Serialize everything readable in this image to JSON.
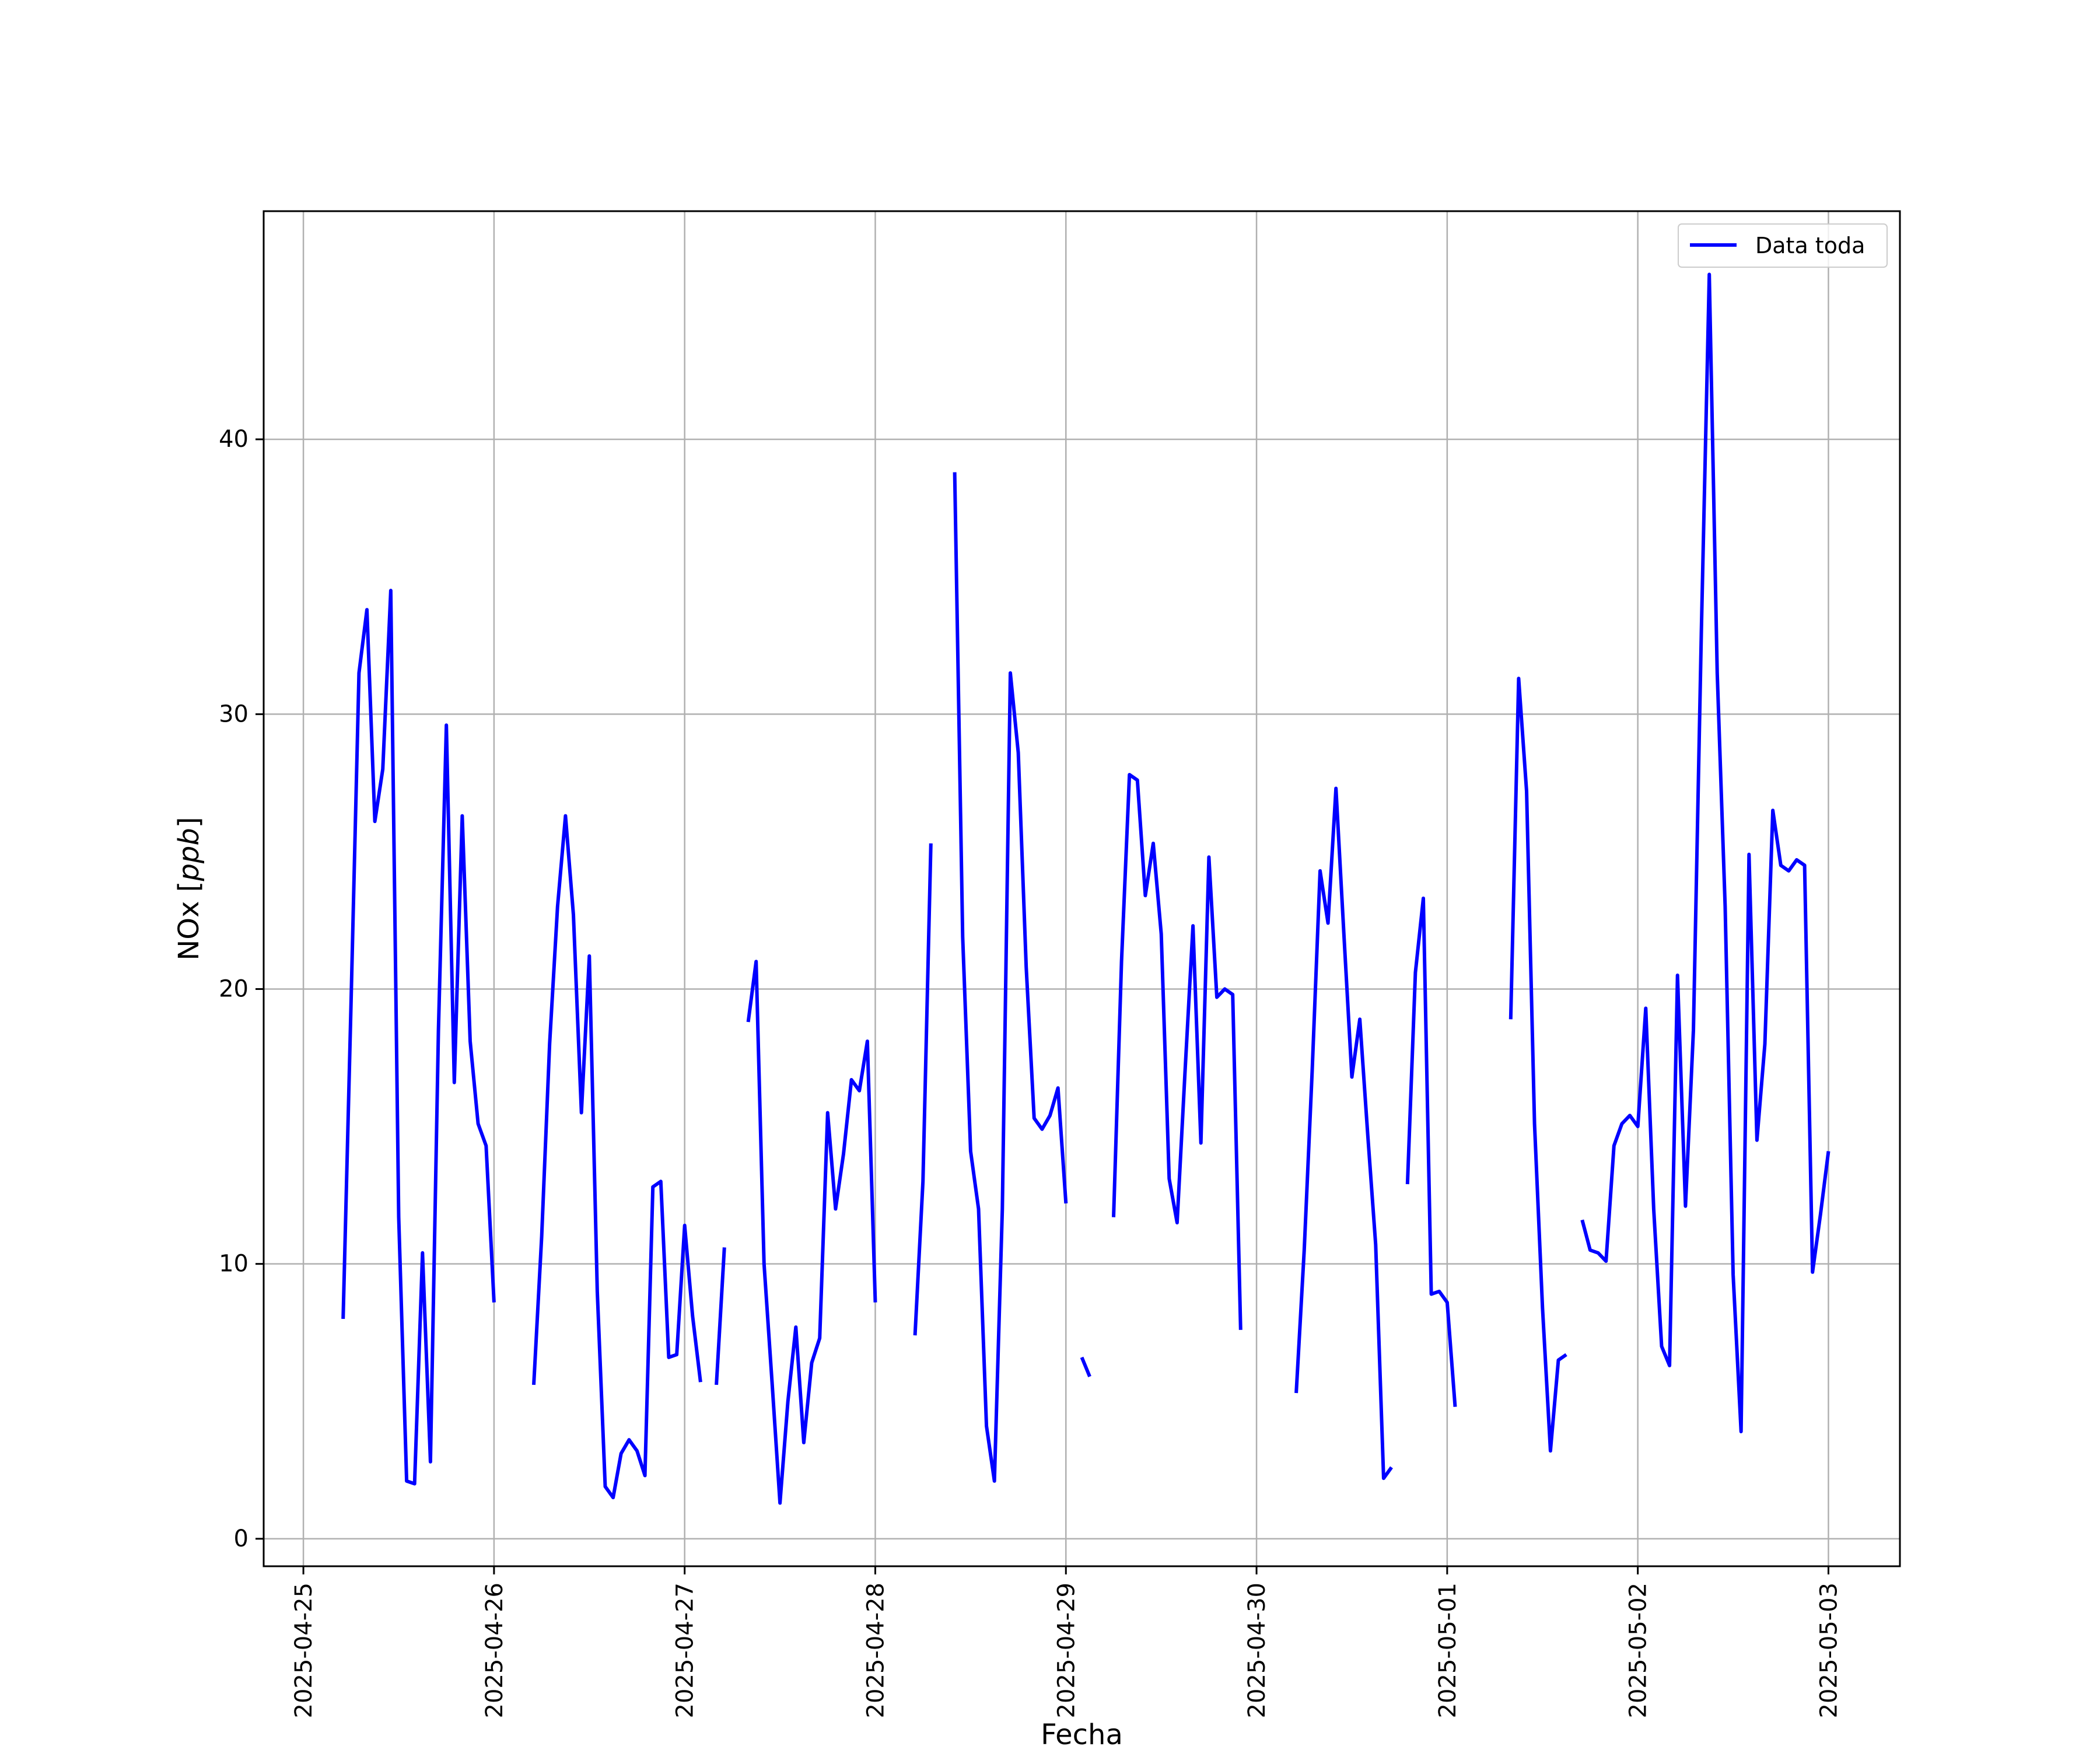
{
  "chart_data": {
    "type": "line",
    "xlabel": "Fecha",
    "ylabel": "NOx [ppb]",
    "ylabel_parts": {
      "prefix": "NOx [",
      "unit": "ppb",
      "suffix": "]"
    },
    "x_ticks": [
      "2025-04-25",
      "2025-04-26",
      "2025-04-27",
      "2025-04-28",
      "2025-04-29",
      "2025-04-30",
      "2025-05-01",
      "2025-05-02",
      "2025-05-03"
    ],
    "y_ticks": [
      0,
      10,
      20,
      30,
      40
    ],
    "xlim": [
      "2025-04-24 19:00",
      "2025-05-03 09:00"
    ],
    "ylim": [
      -1,
      48.3
    ],
    "grid": true,
    "legend_position": "top-right",
    "colors": {
      "series": "#0000ff",
      "grid": "#b0b0b0"
    },
    "series": [
      {
        "name": "Data toda",
        "segments": [
          [
            [
              "2025-04-25 05:00",
              8.0
            ],
            [
              "2025-04-25 06:00",
              19.5
            ],
            [
              "2025-04-25 07:00",
              31.5
            ],
            [
              "2025-04-25 08:00",
              33.8
            ],
            [
              "2025-04-25 09:00",
              26.1
            ],
            [
              "2025-04-25 10:00",
              28.0
            ],
            [
              "2025-04-25 11:00",
              34.5
            ],
            [
              "2025-04-25 12:00",
              11.7
            ],
            [
              "2025-04-25 13:00",
              2.1
            ],
            [
              "2025-04-25 14:00",
              2.0
            ],
            [
              "2025-04-25 15:00",
              10.4
            ],
            [
              "2025-04-25 16:00",
              2.8
            ],
            [
              "2025-04-25 17:00",
              18.5
            ],
            [
              "2025-04-25 18:00",
              29.6
            ],
            [
              "2025-04-25 19:00",
              16.6
            ],
            [
              "2025-04-25 20:00",
              26.3
            ],
            [
              "2025-04-25 21:00",
              18.1
            ],
            [
              "2025-04-25 22:00",
              15.1
            ],
            [
              "2025-04-25 23:00",
              14.3
            ],
            [
              "2025-04-26 00:00",
              8.6
            ]
          ],
          [
            [
              "2025-04-26 05:00",
              5.6
            ],
            [
              "2025-04-26 06:00",
              11.0
            ],
            [
              "2025-04-26 07:00",
              18.0
            ],
            [
              "2025-04-26 08:00",
              23.0
            ],
            [
              "2025-04-26 09:00",
              26.3
            ],
            [
              "2025-04-26 10:00",
              22.7
            ],
            [
              "2025-04-26 11:00",
              15.5
            ],
            [
              "2025-04-26 12:00",
              21.2
            ],
            [
              "2025-04-26 13:00",
              9.0
            ],
            [
              "2025-04-26 14:00",
              1.9
            ],
            [
              "2025-04-26 15:00",
              1.5
            ],
            [
              "2025-04-26 16:00",
              3.1
            ],
            [
              "2025-04-26 17:00",
              3.6
            ],
            [
              "2025-04-26 18:00",
              3.2
            ],
            [
              "2025-04-26 19:00",
              2.3
            ],
            [
              "2025-04-26 20:00",
              12.8
            ],
            [
              "2025-04-26 21:00",
              13.0
            ],
            [
              "2025-04-26 22:00",
              6.6
            ],
            [
              "2025-04-26 23:00",
              6.7
            ],
            [
              "2025-04-27 00:00",
              11.4
            ],
            [
              "2025-04-27 01:00",
              8.1
            ],
            [
              "2025-04-27 02:00",
              5.7
            ]
          ],
          [
            [
              "2025-04-27 04:00",
              5.6
            ],
            [
              "2025-04-27 05:00",
              10.6
            ]
          ],
          [
            [
              "2025-04-27 08:00",
              18.8
            ],
            [
              "2025-04-27 09:00",
              21.0
            ],
            [
              "2025-04-27 10:00",
              10.0
            ],
            [
              "2025-04-27 11:00",
              5.7
            ],
            [
              "2025-04-27 12:00",
              1.3
            ],
            [
              "2025-04-27 13:00",
              5.0
            ],
            [
              "2025-04-27 14:00",
              7.7
            ],
            [
              "2025-04-27 15:00",
              3.5
            ],
            [
              "2025-04-27 16:00",
              6.4
            ],
            [
              "2025-04-27 17:00",
              7.3
            ],
            [
              "2025-04-27 18:00",
              15.5
            ],
            [
              "2025-04-27 19:00",
              12.0
            ],
            [
              "2025-04-27 20:00",
              14.0
            ],
            [
              "2025-04-27 21:00",
              16.7
            ],
            [
              "2025-04-27 22:00",
              16.3
            ],
            [
              "2025-04-27 23:00",
              18.1
            ],
            [
              "2025-04-28 00:00",
              8.6
            ]
          ],
          [
            [
              "2025-04-28 05:00",
              7.4
            ],
            [
              "2025-04-28 06:00",
              13.0
            ],
            [
              "2025-04-28 07:00",
              25.3
            ]
          ],
          [
            [
              "2025-04-28 10:00",
              38.8
            ],
            [
              "2025-04-28 11:00",
              21.9
            ],
            [
              "2025-04-28 12:00",
              14.1
            ],
            [
              "2025-04-28 13:00",
              12.0
            ],
            [
              "2025-04-28 14:00",
              4.1
            ],
            [
              "2025-04-28 15:00",
              2.1
            ],
            [
              "2025-04-28 16:00",
              12.0
            ],
            [
              "2025-04-28 17:00",
              31.5
            ],
            [
              "2025-04-28 18:00",
              28.6
            ],
            [
              "2025-04-28 19:00",
              20.8
            ],
            [
              "2025-04-28 20:00",
              15.3
            ],
            [
              "2025-04-28 21:00",
              14.9
            ],
            [
              "2025-04-28 22:00",
              15.4
            ],
            [
              "2025-04-28 23:00",
              16.4
            ],
            [
              "2025-04-29 00:00",
              12.2
            ]
          ],
          [
            [
              "2025-04-29 02:00",
              6.6
            ],
            [
              "2025-04-29 03:00",
              5.9
            ]
          ],
          [
            [
              "2025-04-29 06:00",
              11.7
            ],
            [
              "2025-04-29 07:00",
              21.0
            ],
            [
              "2025-04-29 08:00",
              27.8
            ],
            [
              "2025-04-29 09:00",
              27.6
            ],
            [
              "2025-04-29 10:00",
              23.4
            ],
            [
              "2025-04-29 11:00",
              25.3
            ],
            [
              "2025-04-29 12:00",
              22.0
            ],
            [
              "2025-04-29 13:00",
              13.1
            ],
            [
              "2025-04-29 14:00",
              11.5
            ],
            [
              "2025-04-29 15:00",
              17.0
            ],
            [
              "2025-04-29 16:00",
              22.3
            ],
            [
              "2025-04-29 17:00",
              14.4
            ],
            [
              "2025-04-29 18:00",
              24.8
            ],
            [
              "2025-04-29 19:00",
              19.7
            ],
            [
              "2025-04-29 20:00",
              20.0
            ],
            [
              "2025-04-29 21:00",
              19.8
            ],
            [
              "2025-04-29 22:00",
              7.6
            ]
          ],
          [
            [
              "2025-04-30 05:00",
              5.3
            ],
            [
              "2025-04-30 06:00",
              10.5
            ],
            [
              "2025-04-30 07:00",
              17.0
            ],
            [
              "2025-04-30 08:00",
              24.3
            ],
            [
              "2025-04-30 09:00",
              22.4
            ],
            [
              "2025-04-30 10:00",
              27.3
            ],
            [
              "2025-04-30 11:00",
              22.0
            ],
            [
              "2025-04-30 12:00",
              16.8
            ],
            [
              "2025-04-30 13:00",
              18.9
            ],
            [
              "2025-04-30 14:00",
              14.7
            ],
            [
              "2025-04-30 15:00",
              10.7
            ],
            [
              "2025-04-30 16:00",
              2.2
            ],
            [
              "2025-04-30 17:00",
              2.6
            ]
          ],
          [
            [
              "2025-04-30 19:00",
              12.9
            ],
            [
              "2025-04-30 20:00",
              20.6
            ],
            [
              "2025-04-30 21:00",
              23.3
            ],
            [
              "2025-04-30 22:00",
              8.9
            ],
            [
              "2025-04-30 23:00",
              9.0
            ],
            [
              "2025-05-01 00:00",
              8.6
            ],
            [
              "2025-05-01 01:00",
              4.8
            ]
          ],
          [
            [
              "2025-05-01 08:00",
              18.9
            ],
            [
              "2025-05-01 09:00",
              31.3
            ],
            [
              "2025-05-01 10:00",
              27.2
            ],
            [
              "2025-05-01 11:00",
              15.1
            ],
            [
              "2025-05-01 12:00",
              8.4
            ],
            [
              "2025-05-01 13:00",
              3.2
            ],
            [
              "2025-05-01 14:00",
              6.5
            ],
            [
              "2025-05-01 15:00",
              6.7
            ]
          ],
          [
            [
              "2025-05-01 17:00",
              11.6
            ],
            [
              "2025-05-01 18:00",
              10.5
            ],
            [
              "2025-05-01 19:00",
              10.4
            ],
            [
              "2025-05-01 20:00",
              10.1
            ],
            [
              "2025-05-01 21:00",
              14.3
            ],
            [
              "2025-05-01 22:00",
              15.1
            ],
            [
              "2025-05-01 23:00",
              15.4
            ],
            [
              "2025-05-02 00:00",
              15.0
            ],
            [
              "2025-05-02 01:00",
              19.3
            ],
            [
              "2025-05-02 02:00",
              12.0
            ],
            [
              "2025-05-02 03:00",
              7.0
            ],
            [
              "2025-05-02 04:00",
              6.3
            ],
            [
              "2025-05-02 05:00",
              20.5
            ],
            [
              "2025-05-02 06:00",
              12.1
            ],
            [
              "2025-05-02 07:00",
              18.5
            ],
            [
              "2025-05-02 08:00",
              33.0
            ],
            [
              "2025-05-02 09:00",
              46.0
            ],
            [
              "2025-05-02 10:00",
              31.5
            ],
            [
              "2025-05-02 11:00",
              23.0
            ],
            [
              "2025-05-02 12:00",
              9.6
            ],
            [
              "2025-05-02 13:00",
              3.9
            ],
            [
              "2025-05-02 14:00",
              24.9
            ],
            [
              "2025-05-02 15:00",
              14.5
            ],
            [
              "2025-05-02 16:00",
              18.0
            ],
            [
              "2025-05-02 17:00",
              26.5
            ],
            [
              "2025-05-02 18:00",
              24.5
            ],
            [
              "2025-05-02 19:00",
              24.3
            ],
            [
              "2025-05-02 20:00",
              24.7
            ],
            [
              "2025-05-02 21:00",
              24.5
            ],
            [
              "2025-05-02 22:00",
              9.7
            ],
            [
              "2025-05-02 23:00",
              11.8
            ],
            [
              "2025-05-03 00:00",
              14.1
            ]
          ]
        ]
      }
    ]
  }
}
